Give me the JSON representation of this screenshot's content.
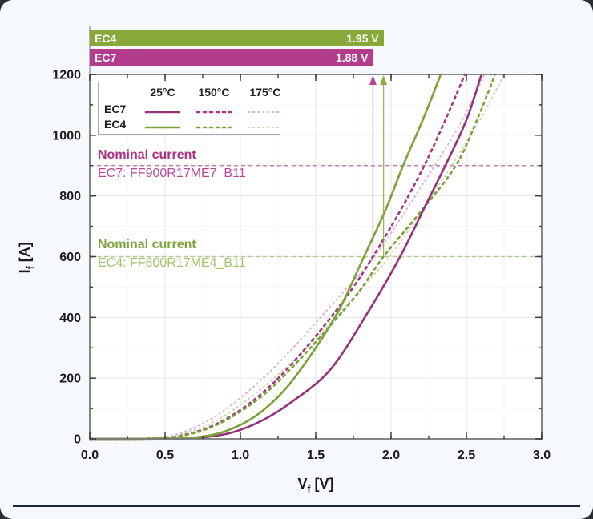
{
  "bars": {
    "items": [
      {
        "label": "EC4",
        "value": "1.95 V",
        "volts": 1.95,
        "color": "#86a93a"
      },
      {
        "label": "EC7",
        "value": "1.88 V",
        "volts": 1.88,
        "color": "#b43c8e"
      }
    ]
  },
  "legend": {
    "headers": [
      "25°C",
      "150°C",
      "175°C"
    ],
    "rows": [
      {
        "label": "EC7",
        "samples": [
          0,
          1,
          2
        ]
      },
      {
        "label": "EC4",
        "samples": [
          3,
          4,
          5
        ]
      }
    ]
  },
  "annotations": {
    "ec7": {
      "line1": "Nominal current",
      "line2": "EC7: FF900R17ME7_B11",
      "color1": "#ad2e86",
      "color2": "#b8489a"
    },
    "ec4": {
      "line1": "Nominal current",
      "line2": "EC4: FF600R17ME4_B11",
      "color1": "#7da33c",
      "color2": "#9fc266"
    }
  },
  "axes": {
    "y": {
      "sym": "I",
      "sub": "f",
      "unit": "[A]"
    },
    "x": {
      "sym": "V",
      "sub": "f",
      "unit": "[V]"
    }
  },
  "colors": {
    "frame": "#7a7a7a",
    "tick": "#3f3f3f",
    "grid_major": "#e7e7e7",
    "grid_minor": "#f5f5f5",
    "tick_label": "#1b1b1b",
    "paper": "#ffffff",
    "card_bg": "#f5f8fc",
    "bottom_rule": "#1c2440",
    "bar_axis": "#9a9a9a"
  },
  "chart_data": {
    "type": "line",
    "x_axis": {
      "label": "Vf [V]",
      "min": 0,
      "max": 3,
      "major": 0.5,
      "minor": 0.25,
      "ticks": [
        "0.0",
        "0.5",
        "1.0",
        "1.5",
        "2.0",
        "2.5",
        "3.0"
      ]
    },
    "y_axis": {
      "label": "If [A]",
      "min": 0,
      "max": 1200,
      "major": 200,
      "minor": 100,
      "ticks": [
        "0",
        "200",
        "400",
        "600",
        "800",
        "1000",
        "1200"
      ]
    },
    "grid": true,
    "legend_position": "inside-top-left",
    "nominal_lines": [
      {
        "name": "EC7 nominal current",
        "current": 900,
        "color": "#c473ae"
      },
      {
        "name": "EC4 nominal current",
        "current": 600,
        "color": "#aec77f"
      }
    ],
    "markers": [
      {
        "name": "EC7 Vf at 600 A",
        "volts": 1.88,
        "from_current": 600,
        "color": "#b5398c"
      },
      {
        "name": "EC4 Vf at 600 A",
        "volts": 1.95,
        "from_current": 600,
        "color": "#85a83a"
      }
    ],
    "series": [
      {
        "name": "EC7 25°C",
        "color": "#97317c",
        "dash": null,
        "width": 2.6,
        "z": 3,
        "points": [
          [
            0,
            0
          ],
          [
            0.55,
            1
          ],
          [
            0.75,
            5
          ],
          [
            0.95,
            22
          ],
          [
            1.15,
            62
          ],
          [
            1.35,
            125
          ],
          [
            1.6,
            230
          ],
          [
            1.85,
            420
          ],
          [
            2.06,
            600
          ],
          [
            2.22,
            760
          ],
          [
            2.36,
            900
          ],
          [
            2.5,
            1050
          ],
          [
            2.6,
            1200
          ]
        ]
      },
      {
        "name": "EC7 150°C",
        "color": "#a83583",
        "dash": "3,5",
        "width": 2.6,
        "z": 2,
        "points": [
          [
            0,
            0
          ],
          [
            0.4,
            1
          ],
          [
            0.6,
            10
          ],
          [
            0.8,
            40
          ],
          [
            1.0,
            95
          ],
          [
            1.2,
            175
          ],
          [
            1.4,
            280
          ],
          [
            1.6,
            400
          ],
          [
            1.75,
            500
          ],
          [
            1.88,
            600
          ],
          [
            2.06,
            750
          ],
          [
            2.22,
            900
          ],
          [
            2.36,
            1050
          ],
          [
            2.49,
            1200
          ]
        ]
      },
      {
        "name": "EC7 175°C",
        "color": "#ddb6d2",
        "dash": "1.5,4.5",
        "width": 2,
        "z": 1,
        "points": [
          [
            0,
            0
          ],
          [
            0.35,
            1
          ],
          [
            0.55,
            12
          ],
          [
            0.75,
            50
          ],
          [
            0.95,
            115
          ],
          [
            1.15,
            200
          ],
          [
            1.35,
            300
          ],
          [
            1.55,
            410
          ],
          [
            1.75,
            520
          ],
          [
            1.92,
            620
          ],
          [
            2.2,
            830
          ],
          [
            2.45,
            1030
          ],
          [
            2.62,
            1200
          ]
        ]
      },
      {
        "name": "EC4 25°C",
        "color": "#7aa238",
        "dash": null,
        "width": 2.6,
        "z": 3,
        "points": [
          [
            0,
            0
          ],
          [
            0.55,
            1
          ],
          [
            0.72,
            6
          ],
          [
            0.9,
            25
          ],
          [
            1.1,
            75
          ],
          [
            1.3,
            165
          ],
          [
            1.5,
            300
          ],
          [
            1.66,
            430
          ],
          [
            1.82,
            600
          ],
          [
            1.96,
            750
          ],
          [
            2.08,
            900
          ],
          [
            2.21,
            1050
          ],
          [
            2.33,
            1200
          ]
        ]
      },
      {
        "name": "EC4 150°C",
        "color": "#7aa238",
        "dash": "3,5",
        "width": 2.6,
        "z": 2,
        "points": [
          [
            0,
            0
          ],
          [
            0.4,
            1
          ],
          [
            0.6,
            9
          ],
          [
            0.8,
            37
          ],
          [
            1.0,
            90
          ],
          [
            1.2,
            165
          ],
          [
            1.4,
            265
          ],
          [
            1.6,
            375
          ],
          [
            1.78,
            480
          ],
          [
            1.95,
            600
          ],
          [
            2.2,
            750
          ],
          [
            2.43,
            900
          ],
          [
            2.57,
            1050
          ],
          [
            2.69,
            1200
          ]
        ]
      },
      {
        "name": "EC4 175°C",
        "color": "#ccd8b2",
        "dash": "1.5,4.5",
        "width": 2,
        "z": 1,
        "points": [
          [
            0,
            0
          ],
          [
            0.35,
            1
          ],
          [
            0.57,
            11
          ],
          [
            0.78,
            45
          ],
          [
            0.98,
            105
          ],
          [
            1.2,
            190
          ],
          [
            1.42,
            290
          ],
          [
            1.62,
            395
          ],
          [
            1.85,
            520
          ],
          [
            2.05,
            640
          ],
          [
            2.35,
            860
          ],
          [
            2.6,
            1060
          ],
          [
            2.75,
            1200
          ]
        ]
      }
    ]
  }
}
